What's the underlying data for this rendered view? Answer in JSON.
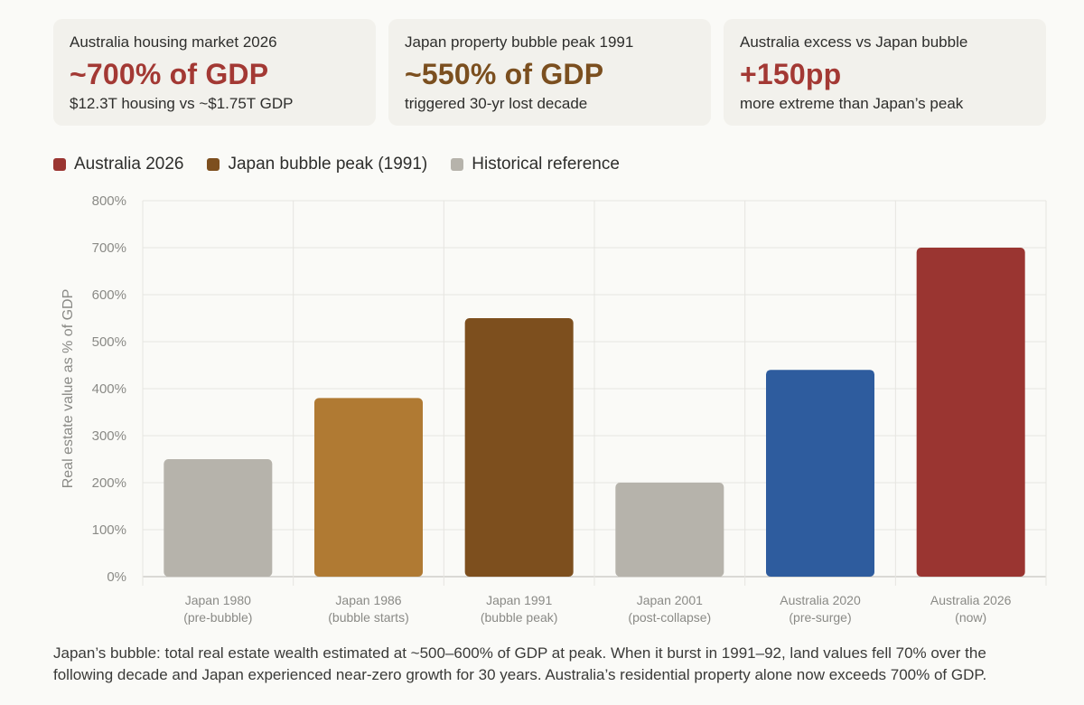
{
  "cards": [
    {
      "label": "Australia housing market 2026",
      "value": "~700% of GDP",
      "sub": "$12.3T housing vs ~$1.75T GDP",
      "color": "#a33934"
    },
    {
      "label": "Japan property bubble peak 1991",
      "value": "~550% of GDP",
      "sub": "triggered 30-yr lost decade",
      "color": "#7b4f1f"
    },
    {
      "label": "Australia excess vs Japan bubble",
      "value": "+150pp",
      "sub": "more extreme than Japan’s peak",
      "color": "#a33934"
    }
  ],
  "legend": [
    {
      "label": "Australia 2026",
      "color": "#9a3531"
    },
    {
      "label": "Japan bubble peak (1991)",
      "color": "#7d4f1e"
    },
    {
      "label": "Historical reference",
      "color": "#b6b3ab"
    }
  ],
  "chart_data": {
    "type": "bar",
    "ylabel": "Real estate value as % of GDP",
    "ylim": [
      0,
      800
    ],
    "yticks": [
      0,
      100,
      200,
      300,
      400,
      500,
      600,
      700,
      800
    ],
    "ytick_labels": [
      "0%",
      "100%",
      "200%",
      "300%",
      "400%",
      "500%",
      "600%",
      "700%",
      "800%"
    ],
    "grid": true,
    "categories": [
      {
        "line1": "Japan 1980",
        "line2": "(pre-bubble)"
      },
      {
        "line1": "Japan 1986",
        "line2": "(bubble starts)"
      },
      {
        "line1": "Japan 1991",
        "line2": "(bubble peak)"
      },
      {
        "line1": "Japan 2001",
        "line2": "(post-collapse)"
      },
      {
        "line1": "Australia 2020",
        "line2": "(pre-surge)"
      },
      {
        "line1": "Australia 2026",
        "line2": "(now)"
      }
    ],
    "values": [
      250,
      380,
      550,
      200,
      440,
      700
    ],
    "colors": [
      "#b6b3ab",
      "#b07a33",
      "#7d4f1e",
      "#b6b3ab",
      "#2e5c9e",
      "#9a3531"
    ]
  },
  "caption": "Japan’s bubble: total real estate wealth estimated at ~500–600% of GDP at peak. When it burst in 1991–92, land values fell 70% over the following decade and Japan experienced near-zero growth for 30 years. Australia’s residential property alone now exceeds 700% of GDP."
}
